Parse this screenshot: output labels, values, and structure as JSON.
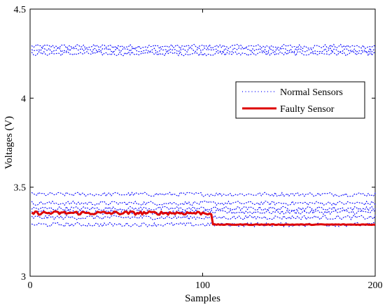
{
  "chart_data": {
    "type": "line",
    "title": "",
    "xlabel": "Samples",
    "ylabel": "Voltages (V)",
    "xlim": [
      0,
      200
    ],
    "ylim": [
      3,
      4.5
    ],
    "xticks": [
      0,
      100,
      200
    ],
    "yticks": [
      3,
      3.5,
      4,
      4.5
    ],
    "xtick_labels": [
      "0",
      "100",
      "200"
    ],
    "ytick_labels": [
      "3",
      "3.5",
      "4",
      "4.5"
    ],
    "grid": false,
    "legend_position": "upper-right",
    "series": [
      {
        "name": "Normal Sensors",
        "style": "dotted",
        "color": "#0000ff",
        "x_range": [
          1,
          200
        ],
        "band_centers": [
          4.29,
          4.27,
          4.25,
          3.46,
          3.41,
          3.38,
          3.36,
          3.33,
          3.29
        ],
        "jitter": 0.012
      },
      {
        "name": "Faulty Sensor",
        "style": "solid",
        "color": "#dd0000",
        "segments": [
          {
            "x_range": [
              1,
              105
            ],
            "level": 3.355,
            "jitter": 0.01
          },
          {
            "x_range": [
              106,
              200
            ],
            "level": 3.29,
            "jitter": 0.002
          }
        ]
      }
    ]
  }
}
